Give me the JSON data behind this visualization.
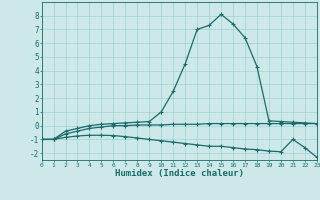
{
  "xlabel": "Humidex (Indice chaleur)",
  "background_color": "#cce8e8",
  "grid_color": "#99cccc",
  "line_color": "#1a6b6b",
  "xlim": [
    0,
    23
  ],
  "ylim": [
    -2.5,
    9.0
  ],
  "yticks": [
    -2,
    -1,
    0,
    1,
    2,
    3,
    4,
    5,
    6,
    7,
    8
  ],
  "xticks": [
    0,
    1,
    2,
    3,
    4,
    5,
    6,
    7,
    8,
    9,
    10,
    11,
    12,
    13,
    14,
    15,
    16,
    17,
    18,
    19,
    20,
    21,
    22,
    23
  ],
  "line1_x": [
    0,
    1,
    2,
    3,
    4,
    5,
    6,
    7,
    8,
    9,
    10,
    11,
    12,
    13,
    14,
    15,
    16,
    17,
    18,
    19,
    20,
    21,
    22,
    23
  ],
  "line1_y": [
    -1.0,
    -1.0,
    -0.4,
    -0.2,
    0.0,
    0.1,
    0.15,
    0.2,
    0.25,
    0.3,
    1.0,
    2.5,
    4.5,
    7.0,
    7.3,
    8.1,
    7.4,
    6.4,
    4.3,
    0.35,
    0.3,
    0.25,
    0.2,
    0.15
  ],
  "line2_x": [
    0,
    1,
    2,
    3,
    4,
    5,
    6,
    7,
    8,
    9,
    10,
    11,
    12,
    13,
    14,
    15,
    16,
    17,
    18,
    19,
    20,
    21,
    22,
    23
  ],
  "line2_y": [
    -1.0,
    -1.0,
    -0.6,
    -0.4,
    -0.2,
    -0.1,
    0.0,
    0.0,
    0.05,
    0.05,
    0.05,
    0.1,
    0.1,
    0.1,
    0.15,
    0.15,
    0.15,
    0.15,
    0.15,
    0.15,
    0.15,
    0.15,
    0.15,
    0.15
  ],
  "line3_x": [
    0,
    1,
    2,
    3,
    4,
    5,
    6,
    7,
    8,
    9,
    10,
    11,
    12,
    13,
    14,
    15,
    16,
    17,
    18,
    19,
    20,
    21,
    22,
    23
  ],
  "line3_y": [
    -1.0,
    -1.0,
    -0.85,
    -0.75,
    -0.7,
    -0.7,
    -0.72,
    -0.8,
    -0.9,
    -1.0,
    -1.1,
    -1.2,
    -1.3,
    -1.4,
    -1.5,
    -1.5,
    -1.6,
    -1.7,
    -1.75,
    -1.85,
    -1.9,
    -1.0,
    -1.6,
    -2.3
  ]
}
